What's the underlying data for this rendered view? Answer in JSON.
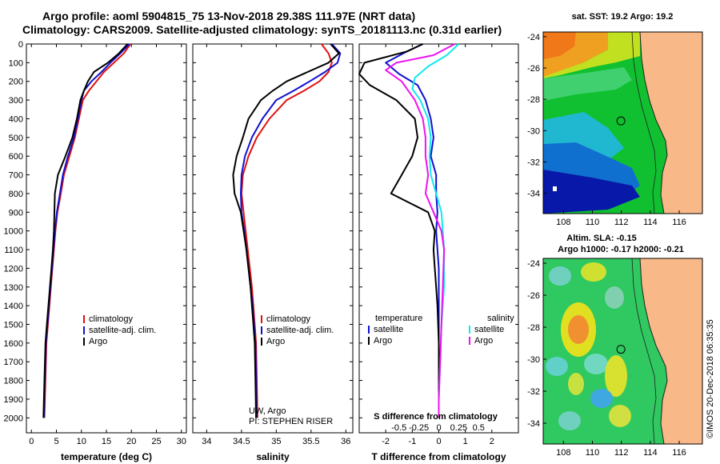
{
  "header": {
    "line1": "Argo profile: aoml 5904815_75 13-Nov-2018 29.38S 111.97E (NRT data)",
    "line2": "Climatology: CARS2009. Satellite-adjusted climatology: synTS_20181113.nc (0.31d earlier)"
  },
  "colors": {
    "climatology": "#e01010",
    "satellite": "#1010d0",
    "argo": "#000000",
    "sal_satellite": "#10e8f0",
    "sal_argo": "#f010f0",
    "land": "#f8b888",
    "coast": "#202020"
  },
  "chart_data": [
    {
      "type": "line",
      "name": "temperature",
      "xlabel": "temperature (deg C)",
      "xlim": [
        -1,
        31
      ],
      "xticks": [
        "0",
        "5",
        "10",
        "15",
        "20",
        "25",
        "30"
      ],
      "xtick_values": [
        0,
        5,
        10,
        15,
        20,
        25,
        30
      ],
      "ylim": [
        2080,
        0
      ],
      "yticks": [
        "0",
        "100",
        "200",
        "300",
        "400",
        "500",
        "600",
        "700",
        "800",
        "900",
        "1000",
        "1100",
        "1200",
        "1300",
        "1400",
        "1500",
        "1600",
        "1700",
        "1800",
        "1900",
        "2000"
      ],
      "ytick_values": [
        0,
        100,
        200,
        300,
        400,
        500,
        600,
        700,
        800,
        900,
        1000,
        1100,
        1200,
        1300,
        1400,
        1500,
        1600,
        1700,
        1800,
        1900,
        2000
      ],
      "legend": [
        "climatology",
        "satellite-adj. clim.",
        "Argo"
      ],
      "legend_colors": [
        "#e01010",
        "#1010d0",
        "#000000"
      ],
      "series": [
        {
          "name": "climatology",
          "color": "#e01010",
          "x": [
            19.8,
            18.5,
            16.5,
            14.5,
            13.0,
            11.5,
            10.3,
            9.5,
            8.7,
            7.6,
            6.5,
            5.9,
            5.2,
            4.8,
            4.5,
            4.2,
            3.9,
            3.6,
            3.3,
            3.0,
            2.8,
            2.6
          ],
          "y": [
            0,
            50,
            100,
            150,
            200,
            250,
            300,
            400,
            500,
            600,
            700,
            800,
            900,
            1000,
            1100,
            1200,
            1300,
            1400,
            1500,
            1600,
            1800,
            2000
          ]
        },
        {
          "name": "satellite-adj. clim.",
          "color": "#1010d0",
          "x": [
            19.6,
            17.8,
            15.8,
            14.0,
            12.0,
            10.5,
            10.0,
            9.3,
            8.5,
            7.3,
            6.3,
            5.7,
            5.1,
            4.7,
            4.4,
            4.1,
            3.8,
            3.5,
            3.2,
            2.9,
            2.7,
            2.5
          ],
          "y": [
            0,
            50,
            100,
            150,
            200,
            250,
            300,
            400,
            500,
            600,
            700,
            800,
            900,
            1000,
            1100,
            1200,
            1300,
            1400,
            1500,
            1600,
            1800,
            2000
          ]
        },
        {
          "name": "Argo",
          "color": "#000000",
          "x": [
            19.2,
            17.5,
            15.3,
            12.5,
            11.3,
            10.5,
            9.8,
            9.1,
            8.2,
            6.8,
            5.3,
            4.7,
            4.6,
            4.5,
            4.3,
            4.0,
            3.7,
            3.4,
            3.1,
            2.8,
            2.6,
            2.4
          ],
          "y": [
            0,
            50,
            100,
            150,
            200,
            250,
            300,
            400,
            500,
            600,
            700,
            800,
            900,
            1000,
            1100,
            1200,
            1300,
            1400,
            1500,
            1600,
            1800,
            2000
          ]
        }
      ]
    },
    {
      "type": "line",
      "name": "salinity",
      "xlabel": "salinity",
      "xlim": [
        33.8,
        36.1
      ],
      "xticks": [
        "34",
        "34.5",
        "35",
        "35.5",
        "36"
      ],
      "xtick_values": [
        34,
        34.5,
        35,
        35.5,
        36
      ],
      "ylim": [
        2080,
        0
      ],
      "legend": [
        "climatology",
        "satellite-adj. clim.",
        "Argo"
      ],
      "legend_colors": [
        "#e01010",
        "#1010d0",
        "#000000"
      ],
      "annotation": [
        "UW, Argo",
        "PI: STEPHEN RISER"
      ],
      "series": [
        {
          "name": "climatology",
          "color": "#e01010",
          "x": [
            35.65,
            35.75,
            35.8,
            35.75,
            35.62,
            35.4,
            35.15,
            34.9,
            34.72,
            34.6,
            34.52,
            34.5,
            34.53,
            34.56,
            34.59,
            34.62,
            34.65,
            34.67,
            34.69,
            34.71,
            34.72,
            34.73
          ],
          "y": [
            0,
            50,
            100,
            150,
            200,
            250,
            300,
            400,
            500,
            600,
            700,
            800,
            900,
            1000,
            1100,
            1200,
            1300,
            1400,
            1500,
            1600,
            1800,
            2000
          ]
        },
        {
          "name": "satellite-adj. clim.",
          "color": "#1010d0",
          "x": [
            35.8,
            35.92,
            35.88,
            35.7,
            35.48,
            35.25,
            35.0,
            34.8,
            34.65,
            34.55,
            34.5,
            34.49,
            34.5,
            34.54,
            34.57,
            34.6,
            34.63,
            34.66,
            34.68,
            34.7,
            34.71,
            34.72
          ],
          "y": [
            0,
            50,
            100,
            150,
            200,
            250,
            300,
            400,
            500,
            600,
            700,
            800,
            900,
            1000,
            1100,
            1200,
            1300,
            1400,
            1500,
            1600,
            1800,
            2000
          ]
        },
        {
          "name": "Argo",
          "color": "#000000",
          "x": [
            35.78,
            35.9,
            35.75,
            35.45,
            35.15,
            34.95,
            34.78,
            34.6,
            34.52,
            34.43,
            34.38,
            34.4,
            34.49,
            34.53,
            34.57,
            34.6,
            34.63,
            34.65,
            34.67,
            34.69,
            34.7,
            34.71
          ],
          "y": [
            0,
            50,
            100,
            150,
            200,
            250,
            300,
            400,
            500,
            600,
            700,
            800,
            900,
            1000,
            1100,
            1200,
            1300,
            1400,
            1500,
            1600,
            1800,
            2000
          ]
        }
      ]
    },
    {
      "type": "line",
      "name": "difference",
      "xlabel": "T difference from climatology",
      "xlabel2": "S difference from climatology",
      "xlim": [
        -3,
        3
      ],
      "xticks": [
        "-2",
        "-1",
        "0",
        "1",
        "2"
      ],
      "xtick_values": [
        -2,
        -1,
        0,
        1,
        2
      ],
      "sticks": [
        "-0.5",
        "-0.25",
        "0",
        "0.25",
        "0.5"
      ],
      "stick_values": [
        -1.5,
        -0.75,
        0,
        0.75,
        1.5
      ],
      "ylim": [
        2080,
        0
      ],
      "legend_left_title": "temperature",
      "legend_right_title": "salinity",
      "legend_left": [
        "satellite",
        "Argo"
      ],
      "legend_left_colors": [
        "#1010d0",
        "#000000"
      ],
      "legend_right": [
        "satellite",
        "Argo"
      ],
      "legend_right_colors": [
        "#10e8f0",
        "#f010f0"
      ],
      "series": [
        {
          "name": "T satellite",
          "color": "#1010d0",
          "x": [
            -0.6,
            -1.2,
            -2.0,
            -1.5,
            -0.8,
            -0.5,
            -0.3,
            -0.2,
            -0.3,
            -0.1,
            -0.1,
            -0.05,
            -0.1,
            -0.05,
            0.0,
            0.0,
            0.0,
            0.0,
            0.0,
            0.0,
            0.0
          ],
          "y": [
            0,
            40,
            100,
            160,
            220,
            300,
            400,
            500,
            600,
            700,
            800,
            900,
            1000,
            1100,
            1200,
            1300,
            1400,
            1500,
            1600,
            1800,
            2000
          ]
        },
        {
          "name": "T Argo",
          "color": "#000000",
          "x": [
            -0.6,
            -1.2,
            -2.8,
            -3.0,
            -2.6,
            -1.6,
            -0.9,
            -0.8,
            -1.0,
            -1.4,
            -1.8,
            -1.1,
            -0.4,
            -0.15,
            -0.2,
            -0.15,
            -0.1,
            -0.05,
            0.0,
            0.0,
            0.0
          ],
          "y": [
            0,
            40,
            100,
            160,
            220,
            300,
            400,
            500,
            600,
            700,
            800,
            850,
            900,
            1000,
            1100,
            1200,
            1300,
            1400,
            1600,
            1800,
            2000
          ]
        },
        {
          "name": "S satellite",
          "color": "#10e8f0",
          "x": [
            0.75,
            0.3,
            -0.4,
            -0.9,
            -1.0,
            -0.7,
            -0.4,
            -0.3,
            -0.35,
            -0.3,
            -0.1,
            0.1,
            0.15,
            0.2,
            0.2,
            0.1,
            0.05,
            0.0,
            0.0
          ],
          "y": [
            0,
            60,
            120,
            180,
            240,
            300,
            400,
            500,
            600,
            700,
            800,
            900,
            1000,
            1100,
            1300,
            1500,
            1700,
            1900,
            2000
          ]
        },
        {
          "name": "S Argo",
          "color": "#f010f0",
          "x": [
            0.6,
            -0.2,
            -1.6,
            -2.0,
            -1.4,
            -0.9,
            -0.6,
            -0.5,
            -0.5,
            -0.4,
            -0.5,
            -0.2,
            0.1,
            0.2,
            0.15,
            0.1,
            0.05,
            0.0,
            0.0
          ],
          "y": [
            0,
            60,
            100,
            140,
            200,
            300,
            400,
            500,
            600,
            700,
            800,
            900,
            1000,
            1100,
            1300,
            1500,
            1700,
            1900,
            2000
          ]
        }
      ]
    }
  ],
  "maps": {
    "sst": {
      "title": "sat. SST: 19.2 Argo: 19.2",
      "yticks": [
        "-24",
        "-26",
        "-28",
        "-30",
        "-32",
        "-34"
      ],
      "ytick_values": [
        -24,
        -26,
        -28,
        -30,
        -32,
        -34
      ],
      "xticks": [
        "108",
        "110",
        "112",
        "114",
        "116"
      ],
      "xtick_values": [
        108,
        110,
        112,
        114,
        116
      ],
      "lon_range": [
        106.6,
        117.6
      ],
      "lat_range": [
        -23.7,
        -35.3
      ]
    },
    "sla": {
      "title1": "Altim. SLA: -0.15",
      "title2": "Argo h1000: -0.17 h2000: -0.21",
      "yticks": [
        "-24",
        "-26",
        "-28",
        "-30",
        "-32",
        "-34"
      ],
      "ytick_values": [
        -24,
        -26,
        -28,
        -30,
        -32,
        -34
      ],
      "xticks": [
        "108",
        "110",
        "112",
        "114",
        "116"
      ],
      "xtick_values": [
        108,
        110,
        112,
        114,
        116
      ],
      "lon_range": [
        106.6,
        117.6
      ],
      "lat_range": [
        -23.7,
        -35.3
      ]
    },
    "float_position": {
      "lon": 111.97,
      "lat": -29.38
    }
  },
  "credit": "©IMOS 20-Dec-2018 06:35:35"
}
